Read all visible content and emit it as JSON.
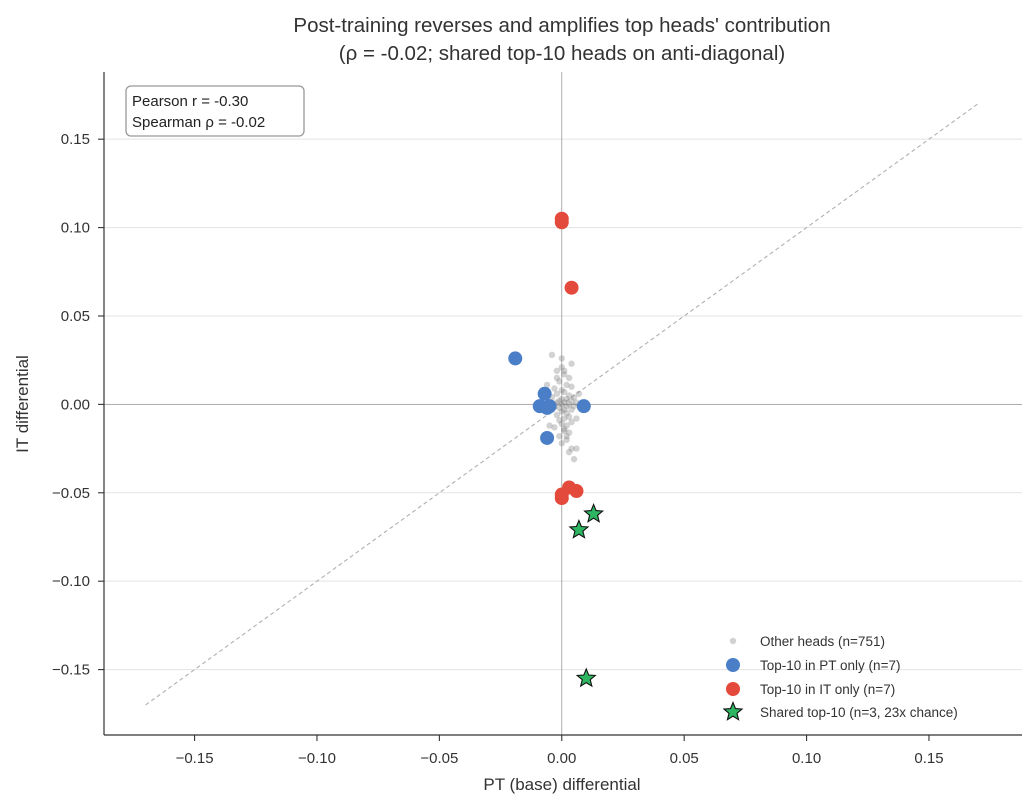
{
  "chart_data": {
    "type": "scatter",
    "title_line1": "Post-training reverses and amplifies top heads' contribution",
    "title_line2": "(ρ = -0.02; shared top-10 heads on anti-diagonal)",
    "xlabel": "PT (base) differential",
    "ylabel": "IT differential",
    "xlim": [
      -0.187,
      0.188
    ],
    "ylim": [
      -0.187,
      0.188
    ],
    "x_ticks": [
      -0.15,
      -0.1,
      -0.05,
      0.0,
      0.05,
      0.1,
      0.15
    ],
    "y_ticks": [
      -0.15,
      -0.1,
      -0.05,
      0.0,
      0.05,
      0.1,
      0.15
    ],
    "x_tick_labels": [
      "−0.15",
      "−0.10",
      "−0.05",
      "0.00",
      "0.05",
      "0.10",
      "0.15"
    ],
    "y_tick_labels": [
      "−0.15",
      "−0.10",
      "−0.05",
      "0.00",
      "0.05",
      "0.10",
      "0.15"
    ],
    "grid": "horizontal",
    "reference_lines": {
      "x_zero": true,
      "y_zero": true,
      "diagonal": [
        -0.17,
        0.17
      ]
    },
    "stats_box": {
      "pearson": "Pearson r = -0.30",
      "spearman": "Spearman ρ = -0.02"
    },
    "legend_position": "bottom-right",
    "series": [
      {
        "name": "Other heads (n=751)",
        "marker": "circle-small",
        "color": "#7f7f7f",
        "points": [
          [
            -0.004,
            0.028
          ],
          [
            0.0,
            0.026
          ],
          [
            0.004,
            0.023
          ],
          [
            -0.002,
            0.019
          ],
          [
            0.001,
            0.017
          ],
          [
            0.003,
            0.015
          ],
          [
            -0.001,
            0.013
          ],
          [
            0.002,
            0.011
          ],
          [
            0.004,
            0.01
          ],
          [
            -0.003,
            0.009
          ],
          [
            0.0,
            0.008
          ],
          [
            0.001,
            0.007
          ],
          [
            -0.002,
            0.006
          ],
          [
            0.003,
            0.005
          ],
          [
            0.005,
            0.004
          ],
          [
            -0.004,
            0.004
          ],
          [
            0.0,
            0.003
          ],
          [
            0.002,
            0.003
          ],
          [
            -0.001,
            0.002
          ],
          [
            0.004,
            0.002
          ],
          [
            0.001,
            0.001
          ],
          [
            -0.002,
            0.001
          ],
          [
            0.003,
            0.0
          ],
          [
            0.0,
            0.0
          ],
          [
            -0.003,
            0.0
          ],
          [
            0.002,
            -0.001
          ],
          [
            0.005,
            -0.001
          ],
          [
            -0.001,
            -0.002
          ],
          [
            0.001,
            -0.003
          ],
          [
            0.004,
            -0.003
          ],
          [
            -0.004,
            -0.003
          ],
          [
            0.0,
            -0.004
          ],
          [
            0.002,
            -0.005
          ],
          [
            -0.002,
            -0.006
          ],
          [
            0.003,
            -0.007
          ],
          [
            0.001,
            -0.008
          ],
          [
            -0.001,
            -0.009
          ],
          [
            0.004,
            -0.01
          ],
          [
            0.0,
            -0.011
          ],
          [
            0.002,
            -0.012
          ],
          [
            -0.003,
            -0.013
          ],
          [
            0.001,
            -0.015
          ],
          [
            0.003,
            -0.016
          ],
          [
            -0.001,
            -0.018
          ],
          [
            0.002,
            -0.02
          ],
          [
            0.0,
            -0.022
          ],
          [
            0.004,
            -0.025
          ],
          [
            0.006,
            -0.025
          ],
          [
            0.003,
            -0.027
          ],
          [
            0.005,
            -0.031
          ],
          [
            -0.005,
            -0.012
          ],
          [
            0.006,
            -0.008
          ],
          [
            0.007,
            0.006
          ],
          [
            0.006,
            0.001
          ],
          [
            -0.006,
            0.011
          ],
          [
            0.0,
            0.021
          ],
          [
            0.001,
            0.019
          ],
          [
            -0.002,
            0.015
          ],
          [
            0.002,
            -0.018
          ],
          [
            0.001,
            -0.014
          ]
        ]
      },
      {
        "name": "Top-10 in PT only (n=7)",
        "marker": "circle",
        "color": "#4a7fc8",
        "points": [
          [
            -0.019,
            0.026
          ],
          [
            -0.007,
            0.006
          ],
          [
            -0.009,
            -0.001
          ],
          [
            -0.006,
            -0.002
          ],
          [
            -0.005,
            -0.001
          ],
          [
            0.009,
            -0.001
          ],
          [
            -0.006,
            -0.019
          ]
        ]
      },
      {
        "name": "Top-10 in IT only (n=7)",
        "marker": "circle",
        "color": "#e44a3b",
        "points": [
          [
            0.0,
            0.105
          ],
          [
            0.0,
            0.103
          ],
          [
            0.004,
            0.066
          ],
          [
            0.003,
            -0.047
          ],
          [
            0.006,
            -0.049
          ],
          [
            0.0,
            -0.051
          ],
          [
            0.0,
            -0.053
          ]
        ]
      },
      {
        "name": "Shared top-10 (n=3, 23x chance)",
        "marker": "star",
        "color": "#2db561",
        "points": [
          [
            0.013,
            -0.062
          ],
          [
            0.007,
            -0.071
          ],
          [
            0.01,
            -0.155
          ]
        ]
      }
    ]
  }
}
